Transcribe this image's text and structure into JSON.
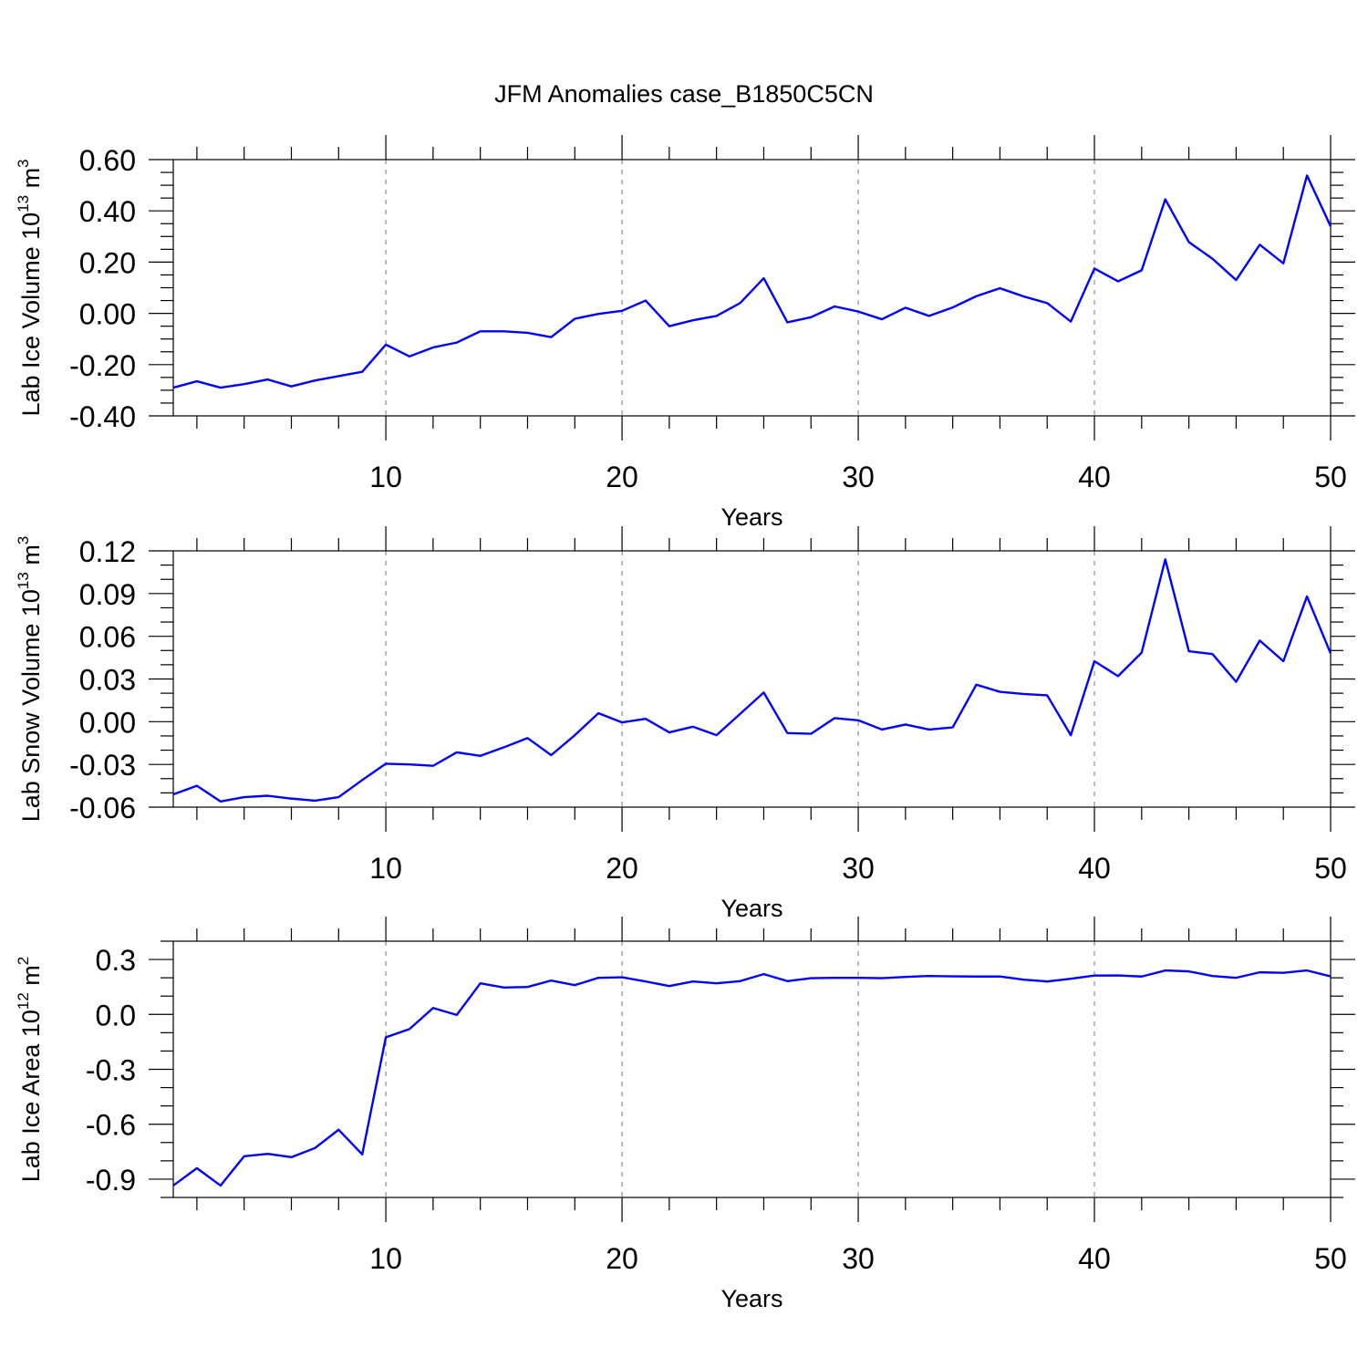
{
  "title": "JFM Anomalies case_B1850C5CN",
  "line_color": "#0000ff",
  "chart_data": [
    {
      "type": "line",
      "ylabel": {
        "text": "Lab Ice Volume 10",
        "exp": "13",
        "unit": " m",
        "unit_exp": "3"
      },
      "xlabel": "Years",
      "xlim": [
        1,
        50
      ],
      "ylim": [
        -0.4,
        0.6
      ],
      "xticks": [
        10,
        20,
        30,
        40,
        50
      ],
      "xtick_labels": [
        "10",
        "20",
        "30",
        "40",
        "50"
      ],
      "yticks": [
        -0.4,
        -0.2,
        0.0,
        0.2,
        0.4,
        0.6
      ],
      "ytick_labels": [
        "-0.40",
        "-0.20",
        "0.00",
        "0.20",
        "0.40",
        "0.60"
      ],
      "x_minor_step": 2,
      "y_minor_step": 0.05,
      "grid": "vertical dashed at major x ticks",
      "x": [
        1,
        2,
        3,
        4,
        5,
        6,
        7,
        8,
        9,
        10,
        11,
        12,
        13,
        14,
        15,
        16,
        17,
        18,
        19,
        20,
        21,
        22,
        23,
        24,
        25,
        26,
        27,
        28,
        29,
        30,
        31,
        32,
        33,
        34,
        35,
        36,
        37,
        38,
        39,
        40,
        41,
        42,
        43,
        44,
        45,
        46,
        47,
        48,
        49,
        50
      ],
      "values": [
        -0.29,
        -0.265,
        -0.29,
        -0.276,
        -0.258,
        -0.285,
        -0.262,
        -0.245,
        -0.228,
        -0.122,
        -0.168,
        -0.133,
        -0.114,
        -0.07,
        -0.07,
        -0.076,
        -0.093,
        -0.021,
        -0.002,
        0.01,
        0.05,
        -0.05,
        -0.027,
        -0.01,
        0.04,
        0.137,
        -0.035,
        -0.015,
        0.027,
        0.007,
        -0.023,
        0.022,
        -0.01,
        0.023,
        0.067,
        0.098,
        0.066,
        0.04,
        -0.032,
        0.175,
        0.125,
        0.168,
        0.445,
        0.278,
        0.213,
        0.13,
        0.268,
        0.195,
        0.538,
        0.34
      ]
    },
    {
      "type": "line",
      "ylabel": {
        "text": "Lab Snow Volume 10",
        "exp": "13",
        "unit": " m",
        "unit_exp": "3"
      },
      "xlabel": "Years",
      "xlim": [
        1,
        50
      ],
      "ylim": [
        -0.06,
        0.12
      ],
      "xticks": [
        10,
        20,
        30,
        40,
        50
      ],
      "xtick_labels": [
        "10",
        "20",
        "30",
        "40",
        "50"
      ],
      "yticks": [
        -0.06,
        -0.03,
        0.0,
        0.03,
        0.06,
        0.09,
        0.12
      ],
      "ytick_labels": [
        "-0.06",
        "-0.03",
        "0.00",
        "0.03",
        "0.06",
        "0.09",
        "0.12"
      ],
      "x_minor_step": 2,
      "y_minor_step": 0.01,
      "grid": "vertical dashed at major x ticks",
      "x": [
        1,
        2,
        3,
        4,
        5,
        6,
        7,
        8,
        9,
        10,
        11,
        12,
        13,
        14,
        15,
        16,
        17,
        18,
        19,
        20,
        21,
        22,
        23,
        24,
        25,
        26,
        27,
        28,
        29,
        30,
        31,
        32,
        33,
        34,
        35,
        36,
        37,
        38,
        39,
        40,
        41,
        42,
        43,
        44,
        45,
        46,
        47,
        48,
        49,
        50
      ],
      "values": [
        -0.051,
        -0.045,
        -0.056,
        -0.053,
        -0.052,
        -0.054,
        -0.0555,
        -0.053,
        -0.041,
        -0.0295,
        -0.03,
        -0.031,
        -0.0215,
        -0.024,
        -0.018,
        -0.0115,
        -0.0235,
        -0.0095,
        0.006,
        -0.0005,
        0.002,
        -0.0075,
        -0.0035,
        -0.0095,
        0.0055,
        0.0205,
        -0.008,
        -0.0085,
        0.0025,
        0.001,
        -0.0055,
        -0.002,
        -0.0055,
        -0.004,
        0.026,
        0.021,
        0.0195,
        0.0185,
        -0.0095,
        0.0425,
        0.032,
        0.0485,
        0.114,
        0.0495,
        0.0475,
        0.028,
        0.057,
        0.0425,
        0.088,
        0.048
      ]
    },
    {
      "type": "line",
      "ylabel": {
        "text": "Lab Ice Area 10",
        "exp": "12",
        "unit": " m",
        "unit_exp": "2"
      },
      "xlabel": "Years",
      "xlim": [
        1,
        50
      ],
      "ylim": [
        -1.0,
        0.4
      ],
      "xticks": [
        10,
        20,
        30,
        40,
        50
      ],
      "xtick_labels": [
        "10",
        "20",
        "30",
        "40",
        "50"
      ],
      "yticks": [
        -0.9,
        -0.6,
        -0.3,
        0.0,
        0.3
      ],
      "ytick_labels": [
        "-0.9",
        "-0.6",
        "-0.3",
        "0.0",
        "0.3"
      ],
      "x_minor_step": 2,
      "y_minor_step": 0.1,
      "grid": "vertical dashed at major x ticks",
      "x": [
        1,
        2,
        3,
        4,
        5,
        6,
        7,
        8,
        9,
        10,
        11,
        12,
        13,
        14,
        15,
        16,
        17,
        18,
        19,
        20,
        21,
        22,
        23,
        24,
        25,
        26,
        27,
        28,
        29,
        30,
        31,
        32,
        33,
        34,
        35,
        36,
        37,
        38,
        39,
        40,
        41,
        42,
        43,
        44,
        45,
        46,
        47,
        48,
        49,
        50
      ],
      "values": [
        -0.935,
        -0.84,
        -0.935,
        -0.775,
        -0.762,
        -0.78,
        -0.73,
        -0.63,
        -0.765,
        -0.125,
        -0.08,
        0.035,
        -0.003,
        0.17,
        0.147,
        0.15,
        0.185,
        0.16,
        0.2,
        0.203,
        0.18,
        0.155,
        0.18,
        0.17,
        0.182,
        0.22,
        0.182,
        0.198,
        0.2,
        0.2,
        0.198,
        0.205,
        0.21,
        0.208,
        0.207,
        0.207,
        0.19,
        0.18,
        0.195,
        0.212,
        0.213,
        0.207,
        0.24,
        0.235,
        0.21,
        0.2,
        0.23,
        0.227,
        0.24,
        0.208
      ]
    }
  ]
}
